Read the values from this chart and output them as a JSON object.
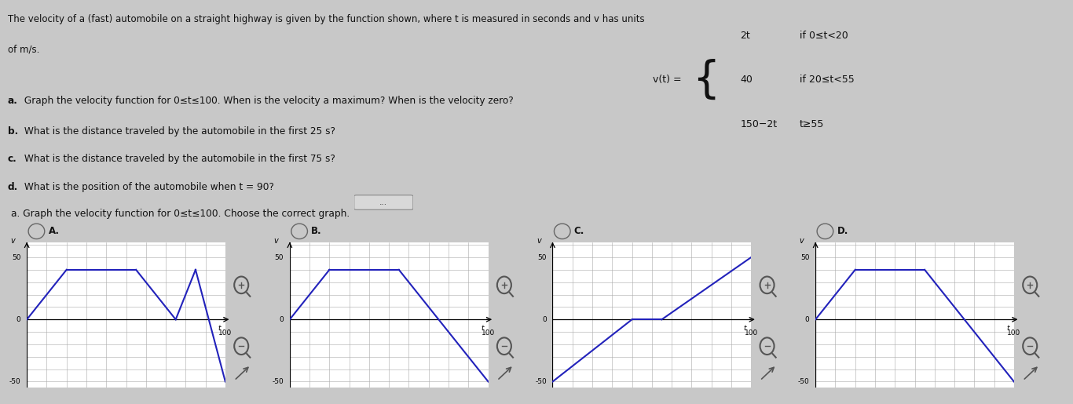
{
  "title_line1": "The velocity of a (fast) automobile on a straight highway is given by the function shown, where t is measured in seconds and v has units",
  "title_line2": "of m/s.",
  "piecewise_cases": [
    {
      "expr": "2t",
      "condition": "if 0≤t<20"
    },
    {
      "expr": "40",
      "condition": "if 20≤t<55"
    },
    {
      "expr": "150−2t",
      "condition": "t≥55"
    }
  ],
  "questions": [
    {
      "bold": "a.",
      "rest": " Graph the velocity function for 0≤t≤100. When is the velocity a maximum? When is the velocity zero?"
    },
    {
      "bold": "b.",
      "rest": " What is the distance traveled by the automobile in the first 25 s?"
    },
    {
      "bold": "c.",
      "rest": " What is the distance traveled by the automobile in the first 75 s?"
    },
    {
      "bold": "d.",
      "rest": " What is the position of the automobile when t = 90?"
    }
  ],
  "subpart_label": "a. Graph the velocity function for 0≤t≤100. Choose the correct graph.",
  "graphs": [
    {
      "label": "A.",
      "selected": false,
      "ylim": [
        -55,
        62
      ],
      "segments_A": [
        {
          "x": [
            0,
            20
          ],
          "y": [
            0,
            40
          ]
        },
        {
          "x": [
            20,
            55
          ],
          "y": [
            40,
            40
          ]
        },
        {
          "x": [
            55,
            75
          ],
          "y": [
            40,
            0
          ]
        },
        {
          "x": [
            75,
            85
          ],
          "y": [
            0,
            40
          ]
        },
        {
          "x": [
            85,
            100
          ],
          "y": [
            40,
            -50
          ]
        }
      ]
    },
    {
      "label": "B.",
      "selected": false,
      "ylim": [
        -55,
        62
      ],
      "segments_B": [
        {
          "x": [
            0,
            20
          ],
          "y": [
            0,
            40
          ]
        },
        {
          "x": [
            20,
            55
          ],
          "y": [
            40,
            40
          ]
        },
        {
          "x": [
            55,
            100
          ],
          "y": [
            40,
            -50
          ]
        }
      ]
    },
    {
      "label": "C.",
      "selected": false,
      "ylim": [
        -55,
        62
      ],
      "segments_C": [
        {
          "x": [
            0,
            40
          ],
          "y": [
            -50,
            0
          ]
        },
        {
          "x": [
            40,
            55
          ],
          "y": [
            0,
            0
          ]
        },
        {
          "x": [
            55,
            100
          ],
          "y": [
            0,
            50
          ]
        }
      ]
    },
    {
      "label": "D.",
      "selected": false,
      "ylim": [
        -55,
        62
      ],
      "segments_D": [
        {
          "x": [
            0,
            20
          ],
          "y": [
            0,
            40
          ]
        },
        {
          "x": [
            20,
            55
          ],
          "y": [
            40,
            40
          ]
        },
        {
          "x": [
            55,
            100
          ],
          "y": [
            40,
            -50
          ]
        }
      ]
    }
  ],
  "line_color": "#2222bb",
  "grid_color": "#999999",
  "bg_top": "#e8e8e8",
  "bg_bottom": "#e0e0e0",
  "page_bg": "#cccccc",
  "text_color": "#111111"
}
